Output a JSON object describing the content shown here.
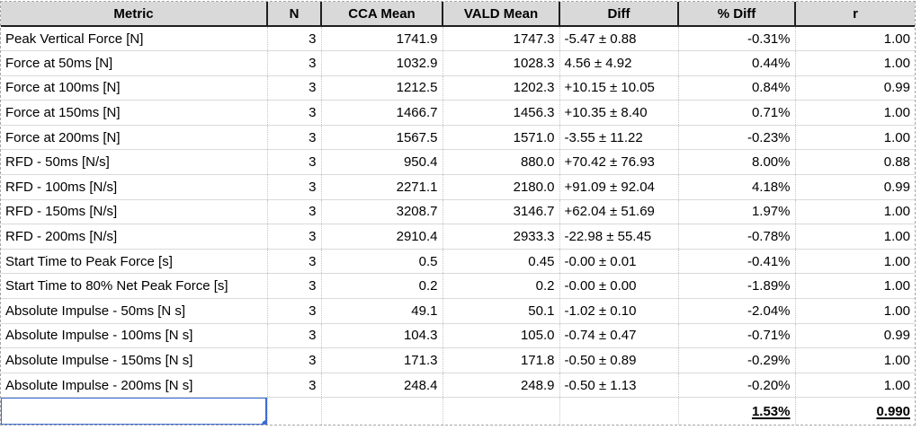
{
  "colors": {
    "selection_blue": "#3e6bd6",
    "header_bg": "#d9d9d9",
    "header_border": "#1f1f1f",
    "gridline_horizontal": "#dadada",
    "gridline_vertical": "#c6c6c6",
    "page_break_dash": "#a6a6a6"
  },
  "table": {
    "columns": [
      {
        "key": "metric",
        "label": "Metric",
        "align": "left"
      },
      {
        "key": "n",
        "label": "N",
        "align": "right"
      },
      {
        "key": "cca",
        "label": "CCA Mean",
        "align": "right"
      },
      {
        "key": "vald",
        "label": "VALD Mean",
        "align": "right"
      },
      {
        "key": "diff",
        "label": "Diff",
        "align": "left"
      },
      {
        "key": "pdiff",
        "label": "% Diff",
        "align": "right"
      },
      {
        "key": "r",
        "label": "r",
        "align": "right"
      }
    ],
    "rows": [
      {
        "metric": "Peak Vertical Force [N]",
        "n": "3",
        "cca": "1741.9",
        "vald": "1747.3",
        "diff": "-5.47 ± 0.88",
        "pdiff": "-0.31%",
        "r": "1.00"
      },
      {
        "metric": "Force at 50ms [N]",
        "n": "3",
        "cca": "1032.9",
        "vald": "1028.3",
        "diff": "4.56 ± 4.92",
        "pdiff": "0.44%",
        "r": "1.00"
      },
      {
        "metric": "Force at 100ms [N]",
        "n": "3",
        "cca": "1212.5",
        "vald": "1202.3",
        "diff": "+10.15 ± 10.05",
        "pdiff": "0.84%",
        "r": "0.99"
      },
      {
        "metric": "Force at 150ms [N]",
        "n": "3",
        "cca": "1466.7",
        "vald": "1456.3",
        "diff": "+10.35 ± 8.40",
        "pdiff": "0.71%",
        "r": "1.00"
      },
      {
        "metric": "Force at 200ms [N]",
        "n": "3",
        "cca": "1567.5",
        "vald": "1571.0",
        "diff": "-3.55 ± 11.22",
        "pdiff": "-0.23%",
        "r": "1.00"
      },
      {
        "metric": "RFD - 50ms [N/s]",
        "n": "3",
        "cca": "950.4",
        "vald": "880.0",
        "diff": "+70.42 ± 76.93",
        "pdiff": "8.00%",
        "r": "0.88"
      },
      {
        "metric": "RFD - 100ms [N/s]",
        "n": "3",
        "cca": "2271.1",
        "vald": "2180.0",
        "diff": "+91.09 ± 92.04",
        "pdiff": "4.18%",
        "r": "0.99"
      },
      {
        "metric": "RFD - 150ms [N/s]",
        "n": "3",
        "cca": "3208.7",
        "vald": "3146.7",
        "diff": "+62.04 ± 51.69",
        "pdiff": "1.97%",
        "r": "1.00"
      },
      {
        "metric": "RFD - 200ms [N/s]",
        "n": "3",
        "cca": "2910.4",
        "vald": "2933.3",
        "diff": "-22.98 ± 55.45",
        "pdiff": "-0.78%",
        "r": "1.00"
      },
      {
        "metric": "Start Time to Peak Force [s]",
        "n": "3",
        "cca": "0.5",
        "vald": "0.45",
        "diff": "-0.00 ± 0.01",
        "pdiff": "-0.41%",
        "r": "1.00"
      },
      {
        "metric": "Start Time to 80% Net Peak Force [s]",
        "n": "3",
        "cca": "0.2",
        "vald": "0.2",
        "diff": "-0.00 ± 0.00",
        "pdiff": "-1.89%",
        "r": "1.00"
      },
      {
        "metric": "Absolute Impulse - 50ms [N s]",
        "n": "3",
        "cca": "49.1",
        "vald": "50.1",
        "diff": "-1.02 ± 0.10",
        "pdiff": "-2.04%",
        "r": "1.00"
      },
      {
        "metric": "Absolute Impulse - 100ms [N s]",
        "n": "3",
        "cca": "104.3",
        "vald": "105.0",
        "diff": "-0.74 ± 0.47",
        "pdiff": "-0.71%",
        "r": "0.99"
      },
      {
        "metric": "Absolute Impulse - 150ms [N s]",
        "n": "3",
        "cca": "171.3",
        "vald": "171.8",
        "diff": "-0.50 ± 0.89",
        "pdiff": "-0.29%",
        "r": "1.00"
      },
      {
        "metric": "Absolute Impulse - 200ms [N s]",
        "n": "3",
        "cca": "248.4",
        "vald": "248.9",
        "diff": "-0.50 ± 1.13",
        "pdiff": "-0.20%",
        "r": "1.00"
      }
    ],
    "summary": {
      "metric": "",
      "n": "",
      "cca": "",
      "vald": "",
      "diff": "",
      "pdiff": "1.53%",
      "r": "0.990"
    }
  }
}
